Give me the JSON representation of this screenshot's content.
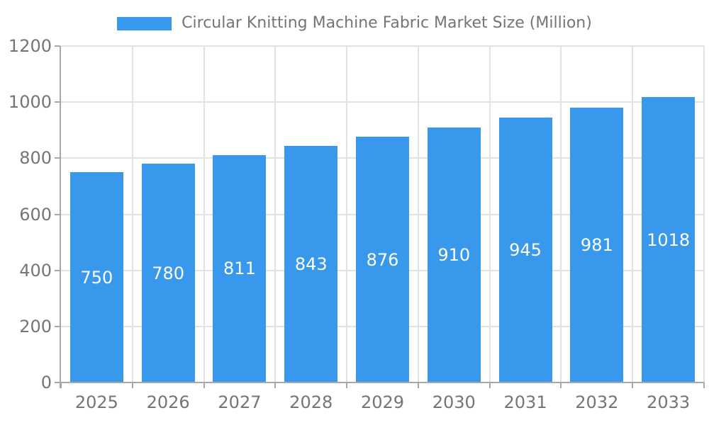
{
  "chart_data": {
    "type": "bar",
    "title": "Circular Knitting Machine Fabric Market Size (Million)",
    "categories": [
      "2025",
      "2026",
      "2027",
      "2028",
      "2029",
      "2030",
      "2031",
      "2032",
      "2033"
    ],
    "values": [
      750,
      780,
      811,
      843,
      876,
      910,
      945,
      981,
      1018
    ],
    "xlabel": "",
    "ylabel": "",
    "ylim": [
      0,
      1200
    ],
    "ytick_step": 200,
    "y_tick_labels": [
      "0",
      "200",
      "400",
      "600",
      "800",
      "1000",
      "1200"
    ],
    "grid": true,
    "legend_position": "top",
    "value_labels": "centered-in-bar"
  },
  "colors": {
    "bar": "#3899EC",
    "grid": "#E2E2E2",
    "axis": "#A8A8A8",
    "tick_text": "#757575",
    "legend_text": "#757575",
    "value_label_text": "#FFFFFF",
    "background": "#FFFFFF"
  }
}
